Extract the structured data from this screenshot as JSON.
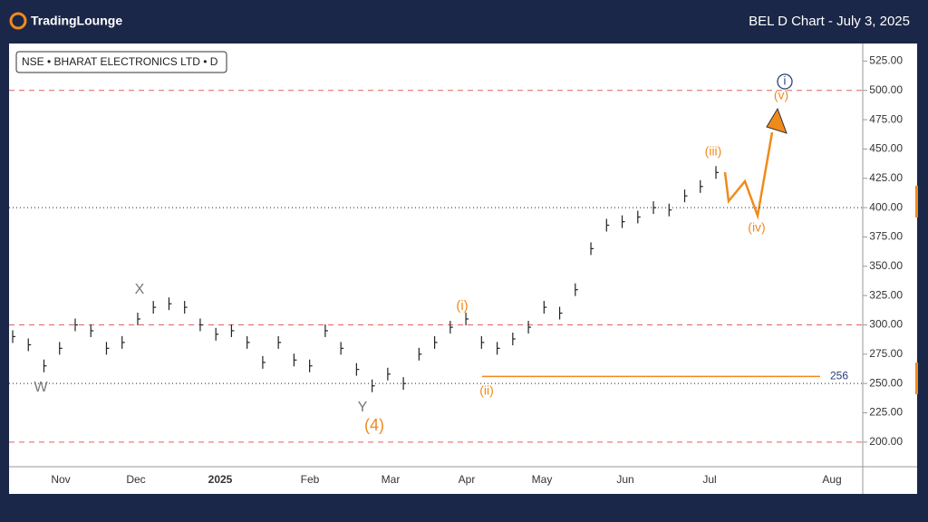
{
  "header": {
    "brand": "TradingLounge",
    "title": "BEL D Chart - July 3, 2025"
  },
  "chart_data": {
    "type": "bar-price",
    "legend": "NSE • BHARAT ELECTRONICS LTD • D",
    "values": [
      290,
      283,
      265,
      280,
      300,
      295,
      280,
      285,
      305,
      315,
      318,
      315,
      300,
      292,
      295,
      285,
      268,
      285,
      270,
      265,
      295,
      280,
      262,
      248,
      258,
      250,
      275,
      285,
      298,
      305,
      285,
      280,
      288,
      298,
      315,
      310,
      330,
      365,
      385,
      388,
      392,
      400,
      398,
      410,
      418,
      430
    ],
    "color": "#222222",
    "xticks": [
      "Nov",
      "Dec",
      "2025",
      "Feb",
      "Mar",
      "Apr",
      "May",
      "Jun",
      "Jul",
      "Aug"
    ],
    "ylim": [
      179,
      540
    ],
    "yticks": [
      {
        "value": 200,
        "label": "200.00"
      },
      {
        "value": 225,
        "label": "225.00"
      },
      {
        "value": 250,
        "label": "250.00"
      },
      {
        "value": 275,
        "label": "275.00"
      },
      {
        "value": 300,
        "label": "300.00"
      },
      {
        "value": 325,
        "label": "325.00"
      },
      {
        "value": 350,
        "label": "350.00"
      },
      {
        "value": 375,
        "label": "375.00"
      },
      {
        "value": 400,
        "label": "400.00"
      },
      {
        "value": 425,
        "label": "425.00"
      },
      {
        "value": 450,
        "label": "450.00"
      },
      {
        "value": 475,
        "label": "475.00"
      },
      {
        "value": 500,
        "label": "500.00"
      },
      {
        "value": 525,
        "label": "525.00"
      }
    ],
    "red_levels": [
      500,
      300,
      200
    ],
    "dotted_levels": [
      400,
      250
    ],
    "support": 256,
    "annotations": [
      "W",
      "X",
      "Y",
      "(4)",
      "(i)",
      "(ii)",
      "(iii)",
      "(iv)",
      "(v)",
      "i"
    ]
  }
}
